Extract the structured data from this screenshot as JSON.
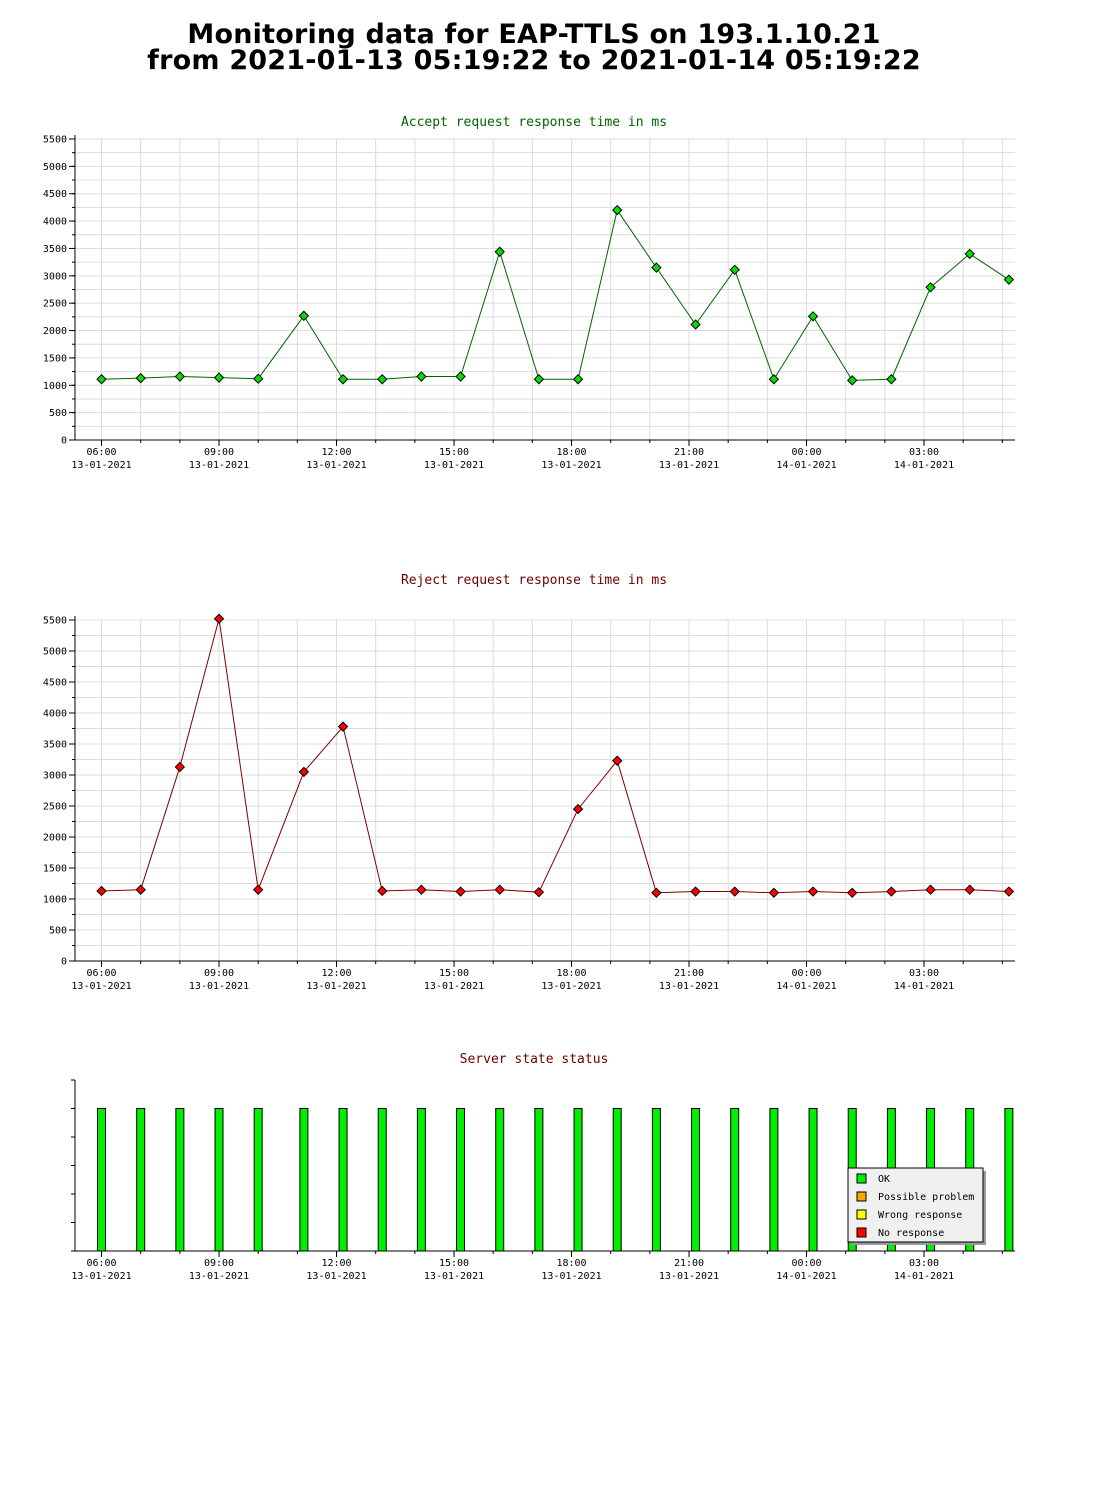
{
  "page_title": {
    "line1": "Monitoring data for EAP-TTLS on 193.1.10.21",
    "line2": "from 2021-01-13 05:19:22 to 2021-01-14 05:19:22"
  },
  "colors": {
    "accept_line": "#006400",
    "accept_marker": "#00e000",
    "accept_title": "#006400",
    "reject_line": "#800000",
    "reject_marker": "#ff0000",
    "reject_title": "#6e0000",
    "status_title": "#6e0000",
    "grid": "#dcdcdc",
    "ok": "#00ee00",
    "possible_problem": "#ffa500",
    "wrong_response": "#ffff00",
    "no_response": "#ff0000"
  },
  "x_ticks": [
    {
      "time": "06:00",
      "date": "13-01-2021"
    },
    {
      "time": "09:00",
      "date": "13-01-2021"
    },
    {
      "time": "12:00",
      "date": "13-01-2021"
    },
    {
      "time": "15:00",
      "date": "13-01-2021"
    },
    {
      "time": "18:00",
      "date": "13-01-2021"
    },
    {
      "time": "21:00",
      "date": "13-01-2021"
    },
    {
      "time": "00:00",
      "date": "14-01-2021"
    },
    {
      "time": "03:00",
      "date": "14-01-2021"
    }
  ],
  "chart_data": [
    {
      "type": "line",
      "title": "Accept request response time in ms",
      "xlabel": "",
      "ylabel": "",
      "x_start": "2021-01-13 05:19:22",
      "x_end": "2021-01-14 05:19:22",
      "ylim": [
        0,
        5500
      ],
      "y_ticks": [
        0,
        500,
        1000,
        1500,
        2000,
        2500,
        3000,
        3500,
        4000,
        4500,
        5000,
        5500
      ],
      "grid": true,
      "x": [
        "2021-01-13 06:00",
        "2021-01-13 07:00",
        "2021-01-13 08:00",
        "2021-01-13 09:00",
        "2021-01-13 10:00",
        "2021-01-13 11:10",
        "2021-01-13 12:10",
        "2021-01-13 13:10",
        "2021-01-13 14:10",
        "2021-01-13 15:10",
        "2021-01-13 16:10",
        "2021-01-13 17:10",
        "2021-01-13 18:10",
        "2021-01-13 19:10",
        "2021-01-13 20:10",
        "2021-01-13 21:10",
        "2021-01-13 22:10",
        "2021-01-13 23:10",
        "2021-01-14 00:10",
        "2021-01-14 01:10",
        "2021-01-14 02:10",
        "2021-01-14 03:10",
        "2021-01-14 04:10",
        "2021-01-14 05:10"
      ],
      "series": [
        {
          "values": [
            1110,
            1130,
            1160,
            1140,
            1120,
            2270,
            1110,
            1110,
            1160,
            1160,
            3440,
            1110,
            1110,
            4200,
            3150,
            2110,
            3110,
            1110,
            2260,
            1090,
            1110,
            2790,
            3400,
            2930
          ]
        }
      ]
    },
    {
      "type": "line",
      "title": "Reject request response time in ms",
      "xlabel": "",
      "ylabel": "",
      "x_start": "2021-01-13 05:19:22",
      "x_end": "2021-01-14 05:19:22",
      "ylim": [
        0,
        5500
      ],
      "y_ticks": [
        0,
        500,
        1000,
        1500,
        2000,
        2500,
        3000,
        3500,
        4000,
        4500,
        5000,
        5500
      ],
      "grid": true,
      "x": [
        "2021-01-13 06:00",
        "2021-01-13 07:00",
        "2021-01-13 08:00",
        "2021-01-13 09:00",
        "2021-01-13 10:00",
        "2021-01-13 11:10",
        "2021-01-13 12:10",
        "2021-01-13 13:10",
        "2021-01-13 14:10",
        "2021-01-13 15:10",
        "2021-01-13 16:10",
        "2021-01-13 17:10",
        "2021-01-13 18:10",
        "2021-01-13 19:10",
        "2021-01-13 20:10",
        "2021-01-13 21:10",
        "2021-01-13 22:10",
        "2021-01-13 23:10",
        "2021-01-14 00:10",
        "2021-01-14 01:10",
        "2021-01-14 02:10",
        "2021-01-14 03:10",
        "2021-01-14 04:10",
        "2021-01-14 05:10"
      ],
      "series": [
        {
          "values": [
            1130,
            1150,
            3130,
            5520,
            1150,
            3050,
            3780,
            1130,
            1150,
            1120,
            1150,
            1110,
            2450,
            3230,
            1100,
            1120,
            1120,
            1100,
            1120,
            1100,
            1120,
            1150,
            1150,
            1120
          ]
        }
      ]
    },
    {
      "type": "bar",
      "title": "Server state status",
      "xlabel": "",
      "ylabel": "",
      "x_start": "2021-01-13 05:19:22",
      "x_end": "2021-01-14 05:19:22",
      "ylim": [
        0,
        1.2
      ],
      "grid": false,
      "legend_position": "bottom-right",
      "x": [
        "2021-01-13 06:00",
        "2021-01-13 07:00",
        "2021-01-13 08:00",
        "2021-01-13 09:00",
        "2021-01-13 10:00",
        "2021-01-13 11:10",
        "2021-01-13 12:10",
        "2021-01-13 13:10",
        "2021-01-13 14:10",
        "2021-01-13 15:10",
        "2021-01-13 16:10",
        "2021-01-13 17:10",
        "2021-01-13 18:10",
        "2021-01-13 19:10",
        "2021-01-13 20:10",
        "2021-01-13 21:10",
        "2021-01-13 22:10",
        "2021-01-13 23:10",
        "2021-01-14 00:10",
        "2021-01-14 01:10",
        "2021-01-14 02:10",
        "2021-01-14 03:10",
        "2021-01-14 04:10",
        "2021-01-14 05:10"
      ],
      "series": [
        {
          "name": "OK",
          "values": [
            1,
            1,
            1,
            1,
            1,
            1,
            1,
            1,
            1,
            1,
            1,
            1,
            1,
            1,
            1,
            1,
            1,
            1,
            1,
            1,
            1,
            1,
            1,
            1
          ]
        },
        {
          "name": "Possible problem",
          "values": [
            0,
            0,
            0,
            0,
            0,
            0,
            0,
            0,
            0,
            0,
            0,
            0,
            0,
            0,
            0,
            0,
            0,
            0,
            0,
            0,
            0,
            0,
            0,
            0
          ]
        },
        {
          "name": "Wrong response",
          "values": [
            0,
            0,
            0,
            0,
            0,
            0,
            0,
            0,
            0,
            0,
            0,
            0,
            0,
            0,
            0,
            0,
            0,
            0,
            0,
            0,
            0,
            0,
            0,
            0
          ]
        },
        {
          "name": "No response",
          "values": [
            0,
            0,
            0,
            0,
            0,
            0,
            0,
            0,
            0,
            0,
            0,
            0,
            0,
            0,
            0,
            0,
            0,
            0,
            0,
            0,
            0,
            0,
            0,
            0
          ]
        }
      ],
      "legend": [
        {
          "label": "OK",
          "color_key": "ok"
        },
        {
          "label": "Possible problem",
          "color_key": "possible_problem"
        },
        {
          "label": "Wrong response",
          "color_key": "wrong_response"
        },
        {
          "label": "No response",
          "color_key": "no_response"
        }
      ]
    }
  ]
}
